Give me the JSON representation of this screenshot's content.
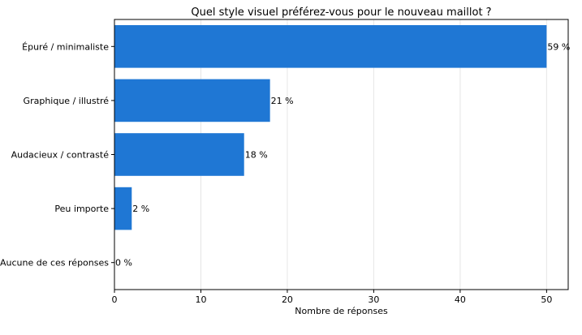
{
  "chart_data": {
    "type": "bar",
    "orientation": "horizontal",
    "title": "Quel style visuel préférez-vous pour le nouveau maillot ?",
    "xlabel": "Nombre de réponses",
    "ylabel": "",
    "categories": [
      "Épuré / minimaliste",
      "Graphique / illustré",
      "Audacieux / contrasté",
      "Peu importe",
      "Aucune de ces réponses"
    ],
    "values": [
      50,
      18,
      15,
      2,
      0
    ],
    "data_labels": [
      "59 %",
      "21 %",
      "18 %",
      "2 %",
      "0 %"
    ],
    "xlim": [
      0,
      52.5
    ],
    "x_ticks": [
      0,
      10,
      20,
      30,
      40,
      50
    ],
    "x_tick_labels": [
      "0",
      "10",
      "20",
      "30",
      "40",
      "50"
    ],
    "grid": "vertical",
    "legend": "none",
    "bar_color": "#1f77d4",
    "grid_color": "#e6e6e6"
  }
}
